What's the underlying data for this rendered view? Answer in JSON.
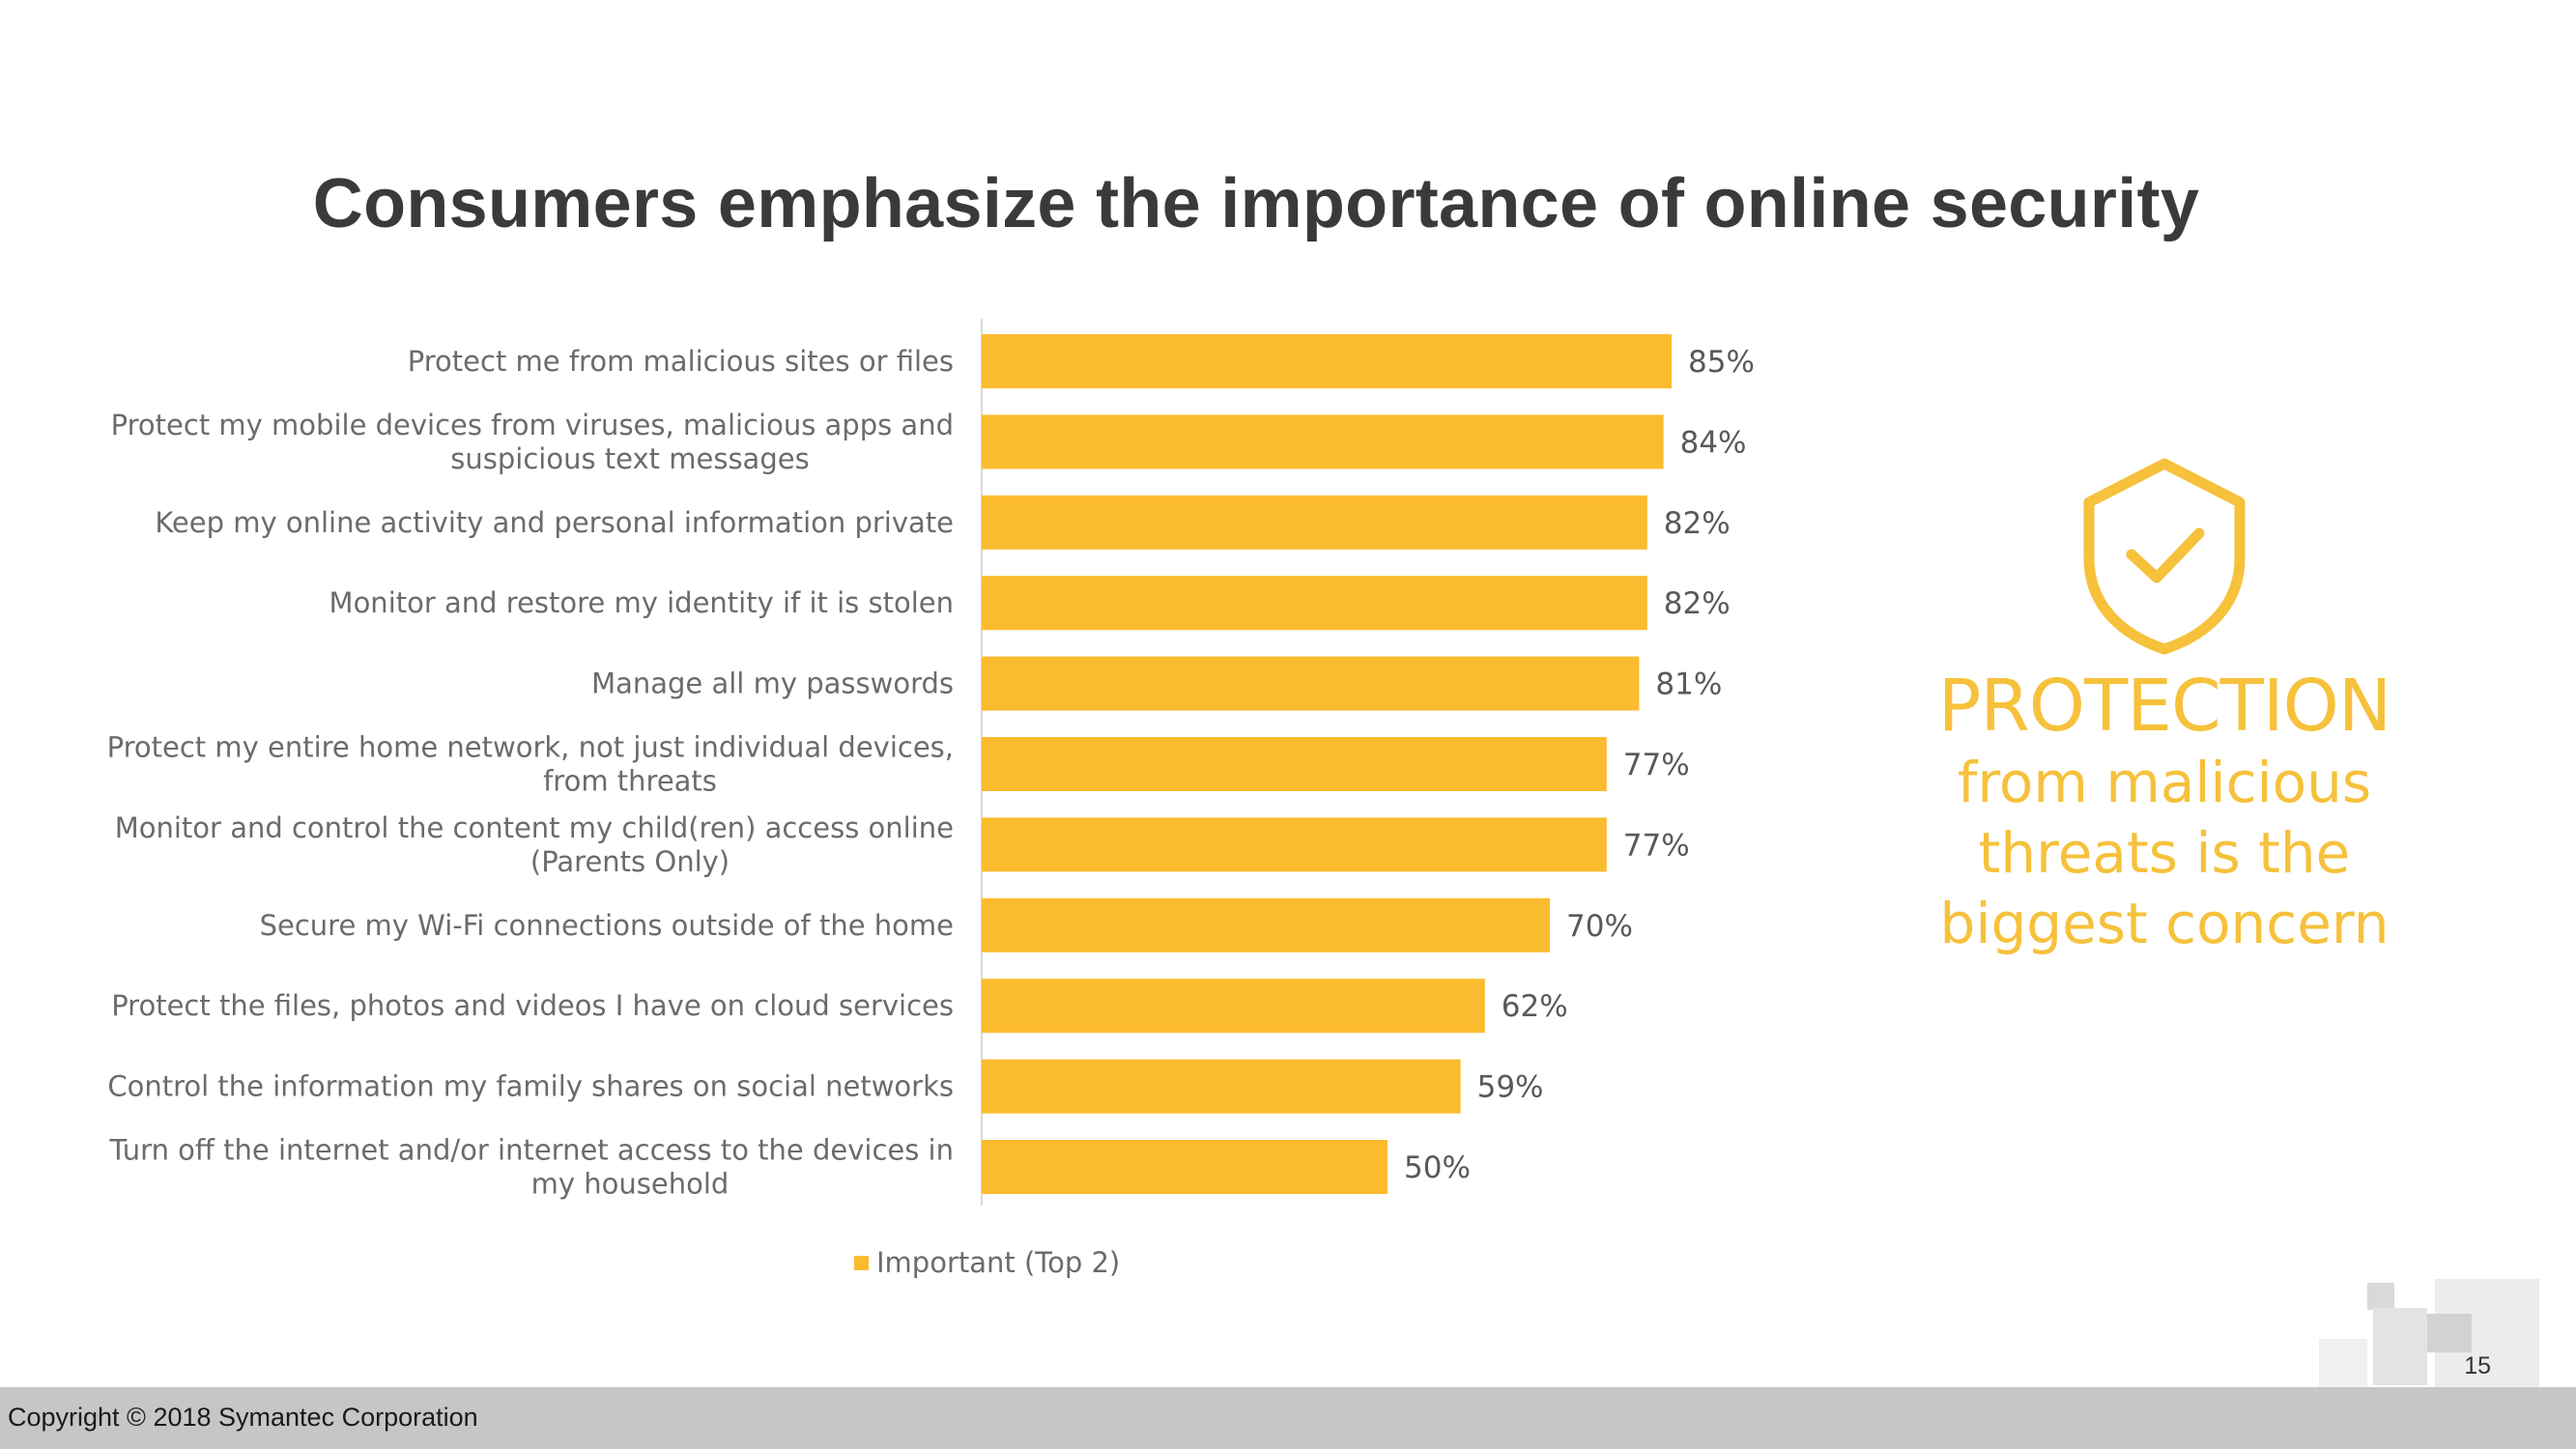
{
  "title": "Consumers emphasize the importance of online security",
  "chart_data": {
    "type": "bar",
    "orientation": "horizontal",
    "categories": [
      [
        "Protect me from malicious sites or files"
      ],
      [
        "Protect my mobile devices from viruses, malicious apps and",
        "suspicious text messages"
      ],
      [
        "Keep my online activity and personal information private"
      ],
      [
        "Monitor and restore my identity if it is stolen"
      ],
      [
        "Manage all my passwords"
      ],
      [
        "Protect my entire home network, not just individual devices,",
        "from threats"
      ],
      [
        "Monitor and control the content my child(ren) access online",
        "(Parents Only)"
      ],
      [
        "Secure my Wi-Fi connections outside of the home"
      ],
      [
        "Protect the files, photos and videos I have on cloud services"
      ],
      [
        "Control the information my family shares on social networks"
      ],
      [
        "Turn off the internet and/or internet access to the devices in",
        "my household"
      ]
    ],
    "series": [
      {
        "name": "Important (Top 2)",
        "values": [
          85,
          84,
          82,
          82,
          81,
          77,
          77,
          70,
          62,
          59,
          50
        ],
        "labels": [
          "85%",
          "84%",
          "82%",
          "82%",
          "81%",
          "77%",
          "77%",
          "70%",
          "62%",
          "59%",
          "50%"
        ],
        "color": "#fbbb2f"
      }
    ],
    "xlim": [
      0,
      100
    ],
    "unit": "%",
    "grid": false,
    "legend_position": "bottom"
  },
  "callout": {
    "icon": "shield-check-icon",
    "headline": "PROTECTION",
    "body_lines": [
      "from malicious",
      "threats is the",
      "biggest concern"
    ],
    "color": "#f6c13b"
  },
  "page_number": "15",
  "footer": {
    "copyright": "Copyright © 2018 Symantec Corporation"
  }
}
